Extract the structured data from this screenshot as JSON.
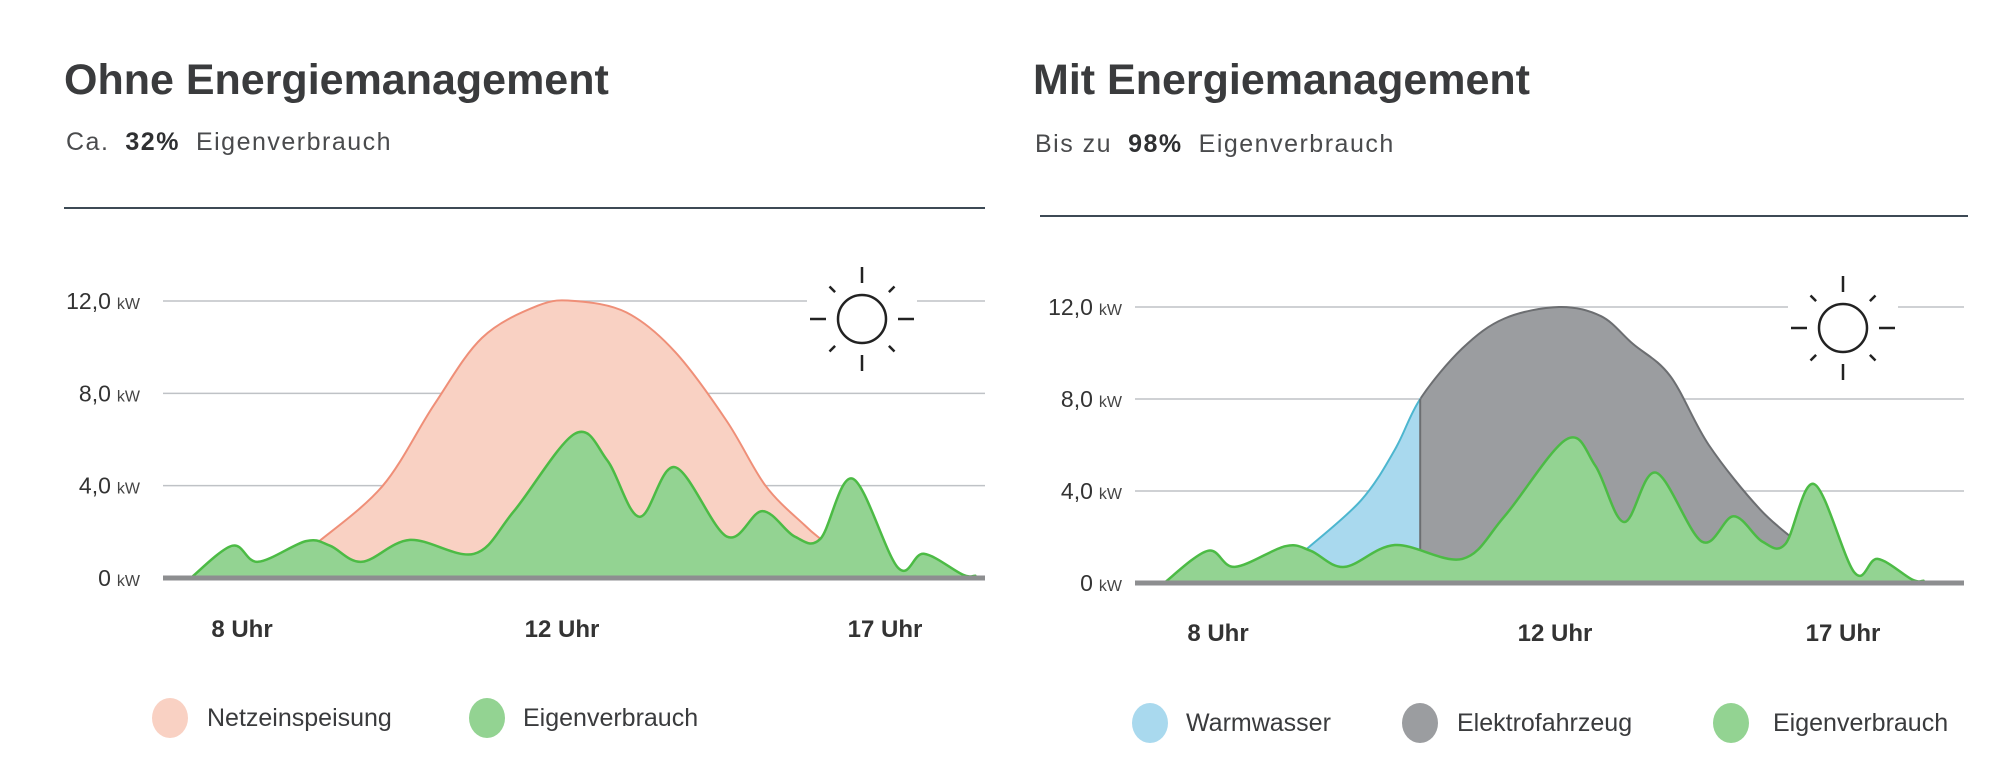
{
  "chart_data": [
    {
      "type": "area",
      "title": "Ohne Energiemanagement",
      "subtitle": {
        "prefix": "Ca.",
        "value": "32%",
        "suffix": "Eigenverbrauch"
      },
      "yticks": [
        {
          "v": 0,
          "label": "0",
          "unit": "kW"
        },
        {
          "v": 4,
          "label": "4,0",
          "unit": "kW"
        },
        {
          "v": 8,
          "label": "8,0",
          "unit": "kW"
        },
        {
          "v": 12,
          "label": "12,0",
          "unit": "kW"
        }
      ],
      "xticks": [
        {
          "h": 8,
          "label": "8 Uhr"
        },
        {
          "h": 12,
          "label": "12 Uhr"
        },
        {
          "h": 17,
          "label": "17 Uhr"
        }
      ],
      "ylim": [
        0,
        12
      ],
      "grid": true,
      "legend_position": "bottom",
      "icon": "sun-icon",
      "series": [
        {
          "name": "Netzeinspeisung",
          "color": "#f9d1c3",
          "stroke": "#ef8f78",
          "points": [
            [
              8.95,
              1.55
            ],
            [
              9.76,
              4.0
            ],
            [
              10.4,
              7.5
            ],
            [
              11.0,
              10.4
            ],
            [
              11.7,
              11.8
            ],
            [
              12.2,
              12.0
            ],
            [
              13.0,
              11.5
            ],
            [
              13.75,
              9.8
            ],
            [
              14.55,
              6.8
            ],
            [
              15.15,
              4.0
            ],
            [
              15.75,
              2.3
            ],
            [
              16.0,
              1.7
            ]
          ]
        },
        {
          "name": "Eigenverbrauch",
          "color": "#93d392",
          "stroke": "#4cbb45",
          "points": [
            [
              7.36,
              0
            ],
            [
              7.88,
              1.4
            ],
            [
              8.2,
              0.7
            ],
            [
              8.8,
              1.6
            ],
            [
              9.1,
              1.4
            ],
            [
              9.5,
              0.7
            ],
            [
              10.1,
              1.65
            ],
            [
              10.9,
              1.05
            ],
            [
              11.4,
              2.9
            ],
            [
              12.2,
              6.25
            ],
            [
              12.7,
              5.1
            ],
            [
              13.2,
              2.65
            ],
            [
              13.75,
              4.8
            ],
            [
              14.55,
              1.8
            ],
            [
              15.1,
              2.9
            ],
            [
              15.6,
              1.8
            ],
            [
              16.0,
              1.7
            ],
            [
              16.5,
              4.3
            ],
            [
              17.2,
              0.45
            ],
            [
              17.6,
              1.05
            ],
            [
              18.2,
              0.15
            ],
            [
              18.4,
              0.1
            ]
          ]
        }
      ]
    },
    {
      "type": "area",
      "title": "Mit Energiemanagement",
      "subtitle": {
        "prefix": "Bis zu",
        "value": "98%",
        "suffix": "Eigenverbrauch"
      },
      "yticks": [
        {
          "v": 0,
          "label": "0",
          "unit": "kW"
        },
        {
          "v": 4,
          "label": "4,0",
          "unit": "kW"
        },
        {
          "v": 8,
          "label": "8,0",
          "unit": "kW"
        },
        {
          "v": 12,
          "label": "12,0",
          "unit": "kW"
        }
      ],
      "xticks": [
        {
          "h": 8,
          "label": "8 Uhr"
        },
        {
          "h": 12,
          "label": "12 Uhr"
        },
        {
          "h": 17,
          "label": "17 Uhr"
        }
      ],
      "ylim": [
        0,
        12
      ],
      "grid": true,
      "legend_position": "bottom",
      "icon": "sun-icon",
      "split_hour": 10.4,
      "series": [
        {
          "name": "Warmwasser",
          "color": "#a9d9ee",
          "stroke": "#4db6cf"
        },
        {
          "name": "Elektrofahrzeug",
          "color": "#9b9da0",
          "stroke": "#6c6e71"
        },
        {
          "name": "Eigenverbrauch",
          "color": "#93d392",
          "stroke": "#4cbb45",
          "points": [
            [
              7.36,
              0
            ],
            [
              7.88,
              1.4
            ],
            [
              8.2,
              0.7
            ],
            [
              8.8,
              1.6
            ],
            [
              9.1,
              1.4
            ],
            [
              9.5,
              0.7
            ],
            [
              10.1,
              1.65
            ],
            [
              10.9,
              1.05
            ],
            [
              11.4,
              2.9
            ],
            [
              12.2,
              6.25
            ],
            [
              12.7,
              5.1
            ],
            [
              13.2,
              2.65
            ],
            [
              13.75,
              4.8
            ],
            [
              14.55,
              1.8
            ],
            [
              15.1,
              2.9
            ],
            [
              15.6,
              1.8
            ],
            [
              16.0,
              1.7
            ],
            [
              16.5,
              4.3
            ],
            [
              17.2,
              0.45
            ],
            [
              17.6,
              1.05
            ],
            [
              18.2,
              0.15
            ],
            [
              18.4,
              0.1
            ]
          ]
        }
      ],
      "pv_points": [
        [
          9.06,
          1.5
        ],
        [
          9.7,
          3.6
        ],
        [
          10.1,
          5.8
        ],
        [
          10.4,
          8.0
        ],
        [
          10.9,
          10.2
        ],
        [
          11.4,
          11.5
        ],
        [
          12.07,
          12.0
        ],
        [
          12.8,
          11.6
        ],
        [
          13.35,
          10.4
        ],
        [
          14.0,
          9.0
        ],
        [
          14.67,
          6.0
        ],
        [
          15.56,
          3.2
        ],
        [
          16.3,
          1.6
        ]
      ]
    }
  ]
}
